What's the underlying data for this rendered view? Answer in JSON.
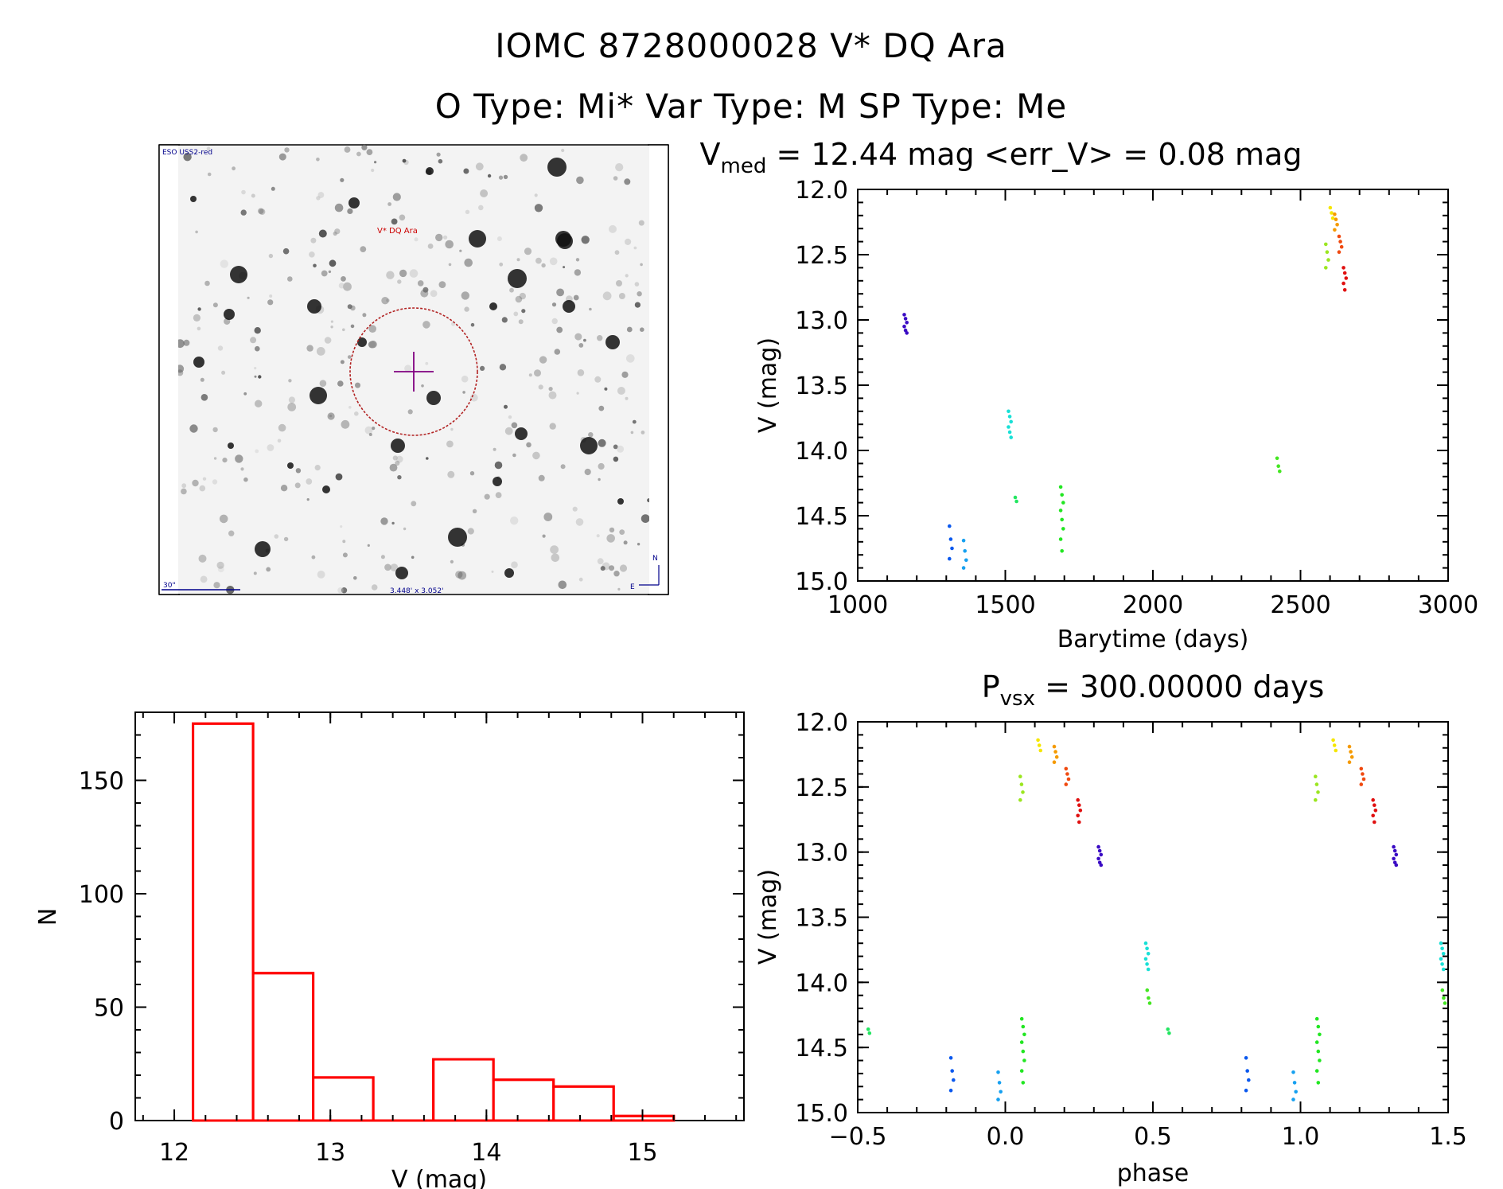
{
  "header": {
    "line1": "IOMC 8728000028   V* DQ Ara",
    "line2": "O Type: Mi*  Var Type: M  SP Type: Me"
  },
  "finder": {
    "survey_label": "ESO USS2-red",
    "target_label": "V* DQ Ara",
    "scale_label": "30\"",
    "fov_label": "3.448' x 3.052'",
    "north_label": "N",
    "east_label": "E"
  },
  "colors": {
    "histogram": "#ff0000",
    "target_circle": "#b22222",
    "crosshair": "#800080",
    "finder_text": "#00008b",
    "finder_target_text": "#cc0000"
  },
  "chart_data": [
    {
      "id": "lightcurve",
      "type": "scatter",
      "title_main": "V",
      "title_sub": "med",
      "title_rest": " = 12.44 mag <err_V> = 0.08 mag",
      "xlabel": "Barytime (days)",
      "ylabel": "V (mag)",
      "xlim": [
        1000,
        3000
      ],
      "ylim": [
        15.0,
        12.0
      ],
      "xticks": [
        "1000",
        "1500",
        "2000",
        "2500",
        "3000"
      ],
      "yticks": [
        "12.0",
        "12.5",
        "13.0",
        "13.5",
        "14.0",
        "14.5",
        "15.0"
      ],
      "groups": [
        {
          "color": "#3a0bc4",
          "x": 1162,
          "v": [
            12.96,
            12.99,
            13.02,
            13.05,
            13.08,
            13.1
          ]
        },
        {
          "color": "#0a58ee",
          "x": 1315,
          "v": [
            14.58,
            14.68,
            14.75,
            14.83
          ]
        },
        {
          "color": "#16a0f0",
          "x": 1363,
          "v": [
            14.69,
            14.77,
            14.84,
            14.9
          ]
        },
        {
          "color": "#18e0d6",
          "x": 1515,
          "v": [
            13.7,
            13.74,
            13.78,
            13.82,
            13.86,
            13.9
          ]
        },
        {
          "color": "#22e660",
          "x": 1538,
          "v": [
            14.36,
            14.39
          ]
        },
        {
          "color": "#22e622",
          "x": 1692,
          "v": [
            14.28,
            14.34,
            14.4,
            14.46,
            14.53,
            14.6,
            14.68,
            14.77
          ]
        },
        {
          "color": "#44e622",
          "x": 2425,
          "v": [
            14.06,
            14.12,
            14.16
          ]
        },
        {
          "color": "#9be620",
          "x": 2590,
          "v": [
            12.42,
            12.48,
            12.54,
            12.6
          ]
        },
        {
          "color": "#f5e600",
          "x": 2605,
          "v": [
            12.14,
            12.18,
            12.22
          ]
        },
        {
          "color": "#f59a00",
          "x": 2620,
          "v": [
            12.19,
            12.23,
            12.27,
            12.31
          ]
        },
        {
          "color": "#f04a10",
          "x": 2635,
          "v": [
            12.36,
            12.4,
            12.44,
            12.48
          ]
        },
        {
          "color": "#e01010",
          "x": 2650,
          "v": [
            12.6,
            12.64,
            12.68,
            12.72,
            12.77
          ]
        }
      ]
    },
    {
      "id": "phase",
      "type": "scatter",
      "title_main": "P",
      "title_sub": "vsx",
      "title_rest": " = 300.00000 days",
      "xlabel": "phase",
      "ylabel": "V (mag)",
      "xlim": [
        -0.5,
        1.5
      ],
      "ylim": [
        15.0,
        12.0
      ],
      "xticks": [
        "−0.5",
        "0.0",
        "0.5",
        "1.0",
        "1.5"
      ],
      "yticks": [
        "12.0",
        "12.5",
        "13.0",
        "13.5",
        "14.0",
        "14.5",
        "15.0"
      ],
      "groups": [
        {
          "color": "#22e660",
          "x": -0.46,
          "v": [
            14.36,
            14.39
          ]
        },
        {
          "color": "#0a58ee",
          "x": -0.18,
          "v": [
            14.58,
            14.68,
            14.75,
            14.83
          ]
        },
        {
          "color": "#16a0f0",
          "x": -0.02,
          "v": [
            14.69,
            14.77,
            14.84,
            14.9
          ]
        },
        {
          "color": "#22e622",
          "x": 0.06,
          "v": [
            14.28,
            14.34,
            14.4,
            14.46,
            14.53,
            14.6,
            14.68,
            14.77
          ]
        },
        {
          "color": "#9be620",
          "x": 0.055,
          "v": [
            12.42,
            12.48,
            12.54,
            12.6
          ]
        },
        {
          "color": "#f5e600",
          "x": 0.115,
          "v": [
            12.14,
            12.18,
            12.22
          ]
        },
        {
          "color": "#f59a00",
          "x": 0.17,
          "v": [
            12.19,
            12.23,
            12.27,
            12.31
          ]
        },
        {
          "color": "#f04a10",
          "x": 0.21,
          "v": [
            12.36,
            12.4,
            12.44,
            12.48
          ]
        },
        {
          "color": "#e01010",
          "x": 0.25,
          "v": [
            12.6,
            12.64,
            12.68,
            12.72,
            12.77
          ]
        },
        {
          "color": "#3a0bc4",
          "x": 0.32,
          "v": [
            12.96,
            12.99,
            13.02,
            13.05,
            13.08,
            13.1
          ]
        },
        {
          "color": "#18e0d6",
          "x": 0.48,
          "v": [
            13.7,
            13.74,
            13.78,
            13.82,
            13.86,
            13.9
          ]
        },
        {
          "color": "#44e622",
          "x": 0.485,
          "v": [
            14.06,
            14.12,
            14.16
          ]
        },
        {
          "color": "#22e660",
          "x": 0.555,
          "v": [
            14.36,
            14.39
          ]
        },
        {
          "color": "#0a58ee",
          "x": 0.82,
          "v": [
            14.58,
            14.68,
            14.75,
            14.83
          ]
        },
        {
          "color": "#16a0f0",
          "x": 0.98,
          "v": [
            14.69,
            14.77,
            14.84,
            14.9
          ]
        },
        {
          "color": "#22e622",
          "x": 1.06,
          "v": [
            14.28,
            14.34,
            14.4,
            14.46,
            14.53,
            14.6,
            14.68,
            14.77
          ]
        },
        {
          "color": "#9be620",
          "x": 1.055,
          "v": [
            12.42,
            12.48,
            12.54,
            12.6
          ]
        },
        {
          "color": "#f5e600",
          "x": 1.115,
          "v": [
            12.14,
            12.18,
            12.22
          ]
        },
        {
          "color": "#f59a00",
          "x": 1.17,
          "v": [
            12.19,
            12.23,
            12.27,
            12.31
          ]
        },
        {
          "color": "#f04a10",
          "x": 1.21,
          "v": [
            12.36,
            12.4,
            12.44,
            12.48
          ]
        },
        {
          "color": "#e01010",
          "x": 1.25,
          "v": [
            12.6,
            12.64,
            12.68,
            12.72,
            12.77
          ]
        },
        {
          "color": "#3a0bc4",
          "x": 1.32,
          "v": [
            12.96,
            12.99,
            13.02,
            13.05,
            13.08,
            13.1
          ]
        },
        {
          "color": "#18e0d6",
          "x": 1.48,
          "v": [
            13.7,
            13.74,
            13.78,
            13.82,
            13.86,
            13.9
          ]
        },
        {
          "color": "#44e622",
          "x": 1.485,
          "v": [
            14.06,
            14.12,
            14.16
          ]
        }
      ]
    },
    {
      "id": "histogram",
      "type": "bar",
      "xlabel": "V (mag)",
      "ylabel": "N",
      "xlim": [
        11.75,
        15.65
      ],
      "ylim": [
        0,
        180
      ],
      "xticks": [
        "12",
        "13",
        "14",
        "15"
      ],
      "yticks": [
        "0",
        "50",
        "100",
        "150"
      ],
      "bin_edges": [
        12.12,
        12.505,
        12.89,
        13.275,
        13.66,
        14.045,
        14.43,
        14.815,
        15.2
      ],
      "counts": [
        175,
        65,
        19,
        0,
        27,
        18,
        15,
        2
      ]
    }
  ]
}
